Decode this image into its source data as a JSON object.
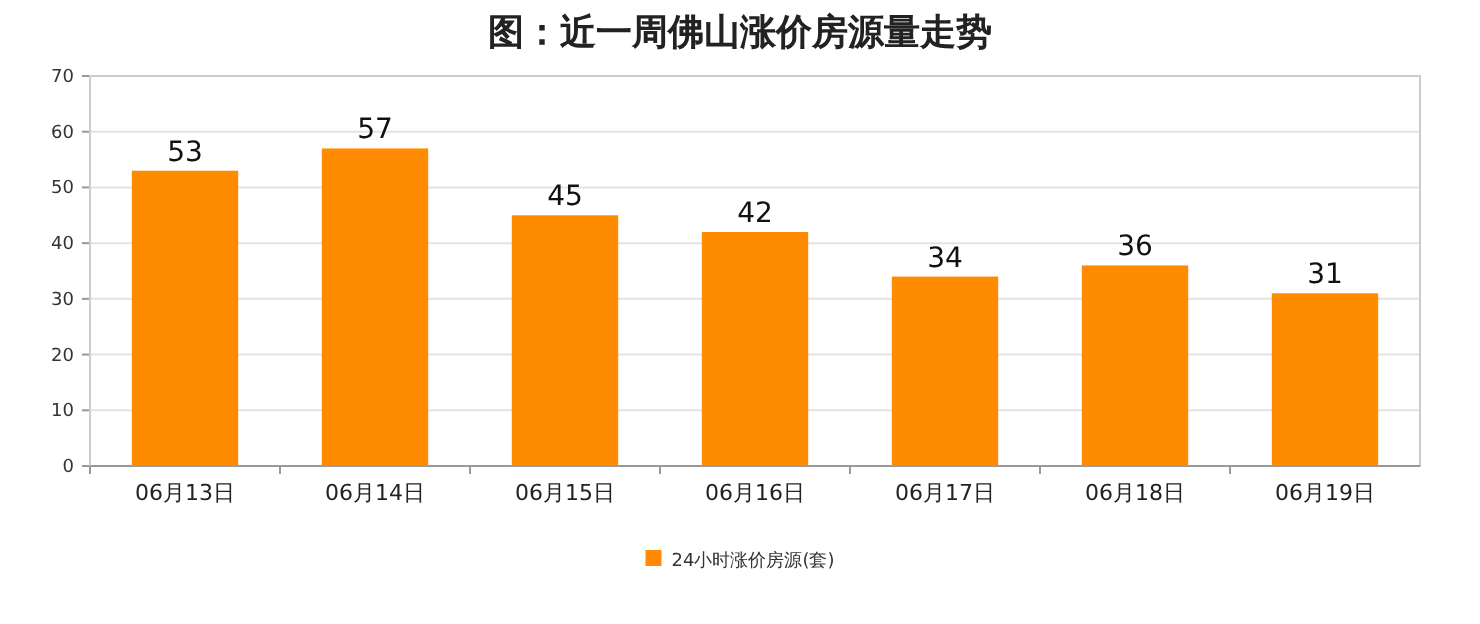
{
  "chart_data": {
    "type": "bar",
    "title": "图：近一周佛山涨价房源量走势",
    "categories": [
      "06月13日",
      "06月14日",
      "06月15日",
      "06月16日",
      "06月17日",
      "06月18日",
      "06月19日"
    ],
    "series": [
      {
        "name": "24小时涨价房源(套)",
        "color": "#ff8c00",
        "values": [
          53,
          57,
          45,
          42,
          34,
          36,
          31
        ]
      }
    ],
    "ylim": [
      0,
      70
    ],
    "yticks": [
      0,
      10,
      20,
      30,
      40,
      50,
      60,
      70
    ],
    "grid": "y",
    "legend": "bottom",
    "data_labels": true
  }
}
